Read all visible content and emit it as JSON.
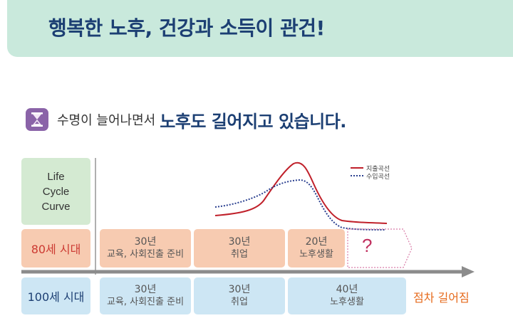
{
  "header": {
    "title": "행복한 노후, 건강과 소득이 관건!"
  },
  "subheading": {
    "small_text": "수명이 늘어나면서",
    "emphasis_text": "노후도 길어지고 있습니다.",
    "icon": "hourglass-icon",
    "icon_color": "#8a63a8"
  },
  "diagram": {
    "life_cycle_label": [
      "Life",
      "Cycle",
      "Curve"
    ],
    "legend": {
      "expense": {
        "label": "지출곡선",
        "color": "#c0202a",
        "style": "solid"
      },
      "income": {
        "label": "수입곡선",
        "color": "#2a3f8f",
        "style": "dotted"
      }
    },
    "row_80": {
      "label": "80세 시대",
      "segments": [
        {
          "years": "30년",
          "desc": "교육, 사회진출 준비"
        },
        {
          "years": "30년",
          "desc": "취업"
        },
        {
          "years": "20년",
          "desc": "노후생활"
        }
      ],
      "unknown": "?"
    },
    "row_100": {
      "label": "100세 시대",
      "segments": [
        {
          "years": "30년",
          "desc": "교육, 사회진출 준비"
        },
        {
          "years": "30년",
          "desc": "취업"
        },
        {
          "years": "40년",
          "desc": "노후생활"
        }
      ]
    },
    "extension_note": "점차 길어짐",
    "colors": {
      "row80": "#f7cbb1",
      "row100": "#cde6f4",
      "life_cycle": "#d4ead2",
      "timeline_arrow": "#8c8c8c"
    }
  }
}
